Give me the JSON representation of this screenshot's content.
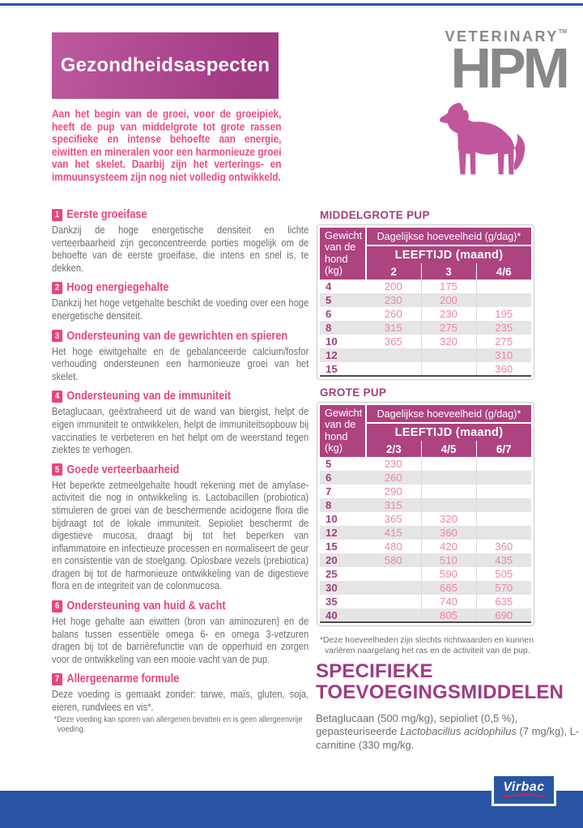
{
  "header": {
    "title": "Gezondheidsaspecten",
    "brand_top": "VETERINARY",
    "brand_tm": "TM",
    "brand_main": "HPM",
    "intro": "Aan het begin van de groei, voor de groeipiek, heeft de pup van middelgrote tot grote rassen specifieke en intense behoefte aan energie, eiwitten en mineralen voor een harmonieuze groei van het skelet. Daarbij zijn het verterings- en immuunsysteem zijn nog niet volledig ontwikkeld."
  },
  "sections": [
    {
      "num": "1",
      "title": "Eerste groeifase",
      "body": "Dankzij de hoge energetische densiteit en lichte verteerbaarheid zijn geconcentreerde porties mogelijk om de behoefte van de eerste groeifase, die intens en snel is, te dekken."
    },
    {
      "num": "2",
      "title": "Hoog energiegehalte",
      "body": "Dankzij het hoge vetgehalte beschikt de voeding over een hoge energetische densiteit."
    },
    {
      "num": "3",
      "title": "Ondersteuning van de gewrichten en spieren",
      "body": "Het hoge eiwitgehalte en de gebalanceerde calcium/fosfor verhouding ondersteunen een harmonieuze groei van het skelet."
    },
    {
      "num": "4",
      "title": "Ondersteuning van de immuniteit",
      "body": "Betaglucaan, geëxtraheerd uit de wand van biergist, helpt de eigen immuniteit te ontwikkelen, helpt de immuniteitsopbouw bij vaccinaties te verbeteren en het helpt om de weerstand tegen ziektes te verhogen."
    },
    {
      "num": "5",
      "title": "Goede verteerbaarheid",
      "body": "Het beperkte zetmeelgehalte houdt rekening met de amylase-activiteit die nog in ontwikkeling is. Lactobacillen (probiotica) stimuleren de groei van de beschermende acidogene flora die bijdraagt tot de lokale immuniteit. Sepioliet beschermt de digestieve mucosa, draagt bij tot het beperken van inflammatoire en infectieuze processen en normaliseert de geur en consistentie van de stoelgang. Oplosbare vezels (prebiotica) dragen bij tot de harmonieuze ontwikkeling van de digestieve flora en de integriteit van de colonmucosa."
    },
    {
      "num": "6",
      "title": "Ondersteuning van huid & vacht",
      "body": "Het hoge gehalte aan eiwitten (bron van aminozuren) en de balans tussen essentiële omega 6- en omega 3-vetzuren dragen bij tot de barrièrefunctie van de opperhuid en zorgen voor de ontwikkeling van een mooie vacht van de pup."
    },
    {
      "num": "7",
      "title": "Allergeenarme formule",
      "body": "Deze voeding is gemaakt zonder: tarwe, maïs, gluten, soja, eieren, rundvlees en vis*.",
      "footnote": "*Deze voeding kan sporen van allergenen bevatten en is geen allergeenvrije voeding."
    }
  ],
  "tables": [
    {
      "title": "MIDDELGROTE PUP",
      "weight_header": "Gewicht van de hond (kg)",
      "amount_header": "Dagelijkse hoeveelheid (g/dag)*",
      "age_header": "LEEFTIJD (maand)",
      "age_cols": [
        "2",
        "3",
        "4/6"
      ],
      "rows": [
        {
          "w": "4",
          "v": [
            "200",
            "175",
            ""
          ]
        },
        {
          "w": "5",
          "v": [
            "230",
            "200",
            ""
          ]
        },
        {
          "w": "6",
          "v": [
            "260",
            "230",
            "195"
          ]
        },
        {
          "w": "8",
          "v": [
            "315",
            "275",
            "235"
          ]
        },
        {
          "w": "10",
          "v": [
            "365",
            "320",
            "275"
          ]
        },
        {
          "w": "12",
          "v": [
            "",
            "",
            "310"
          ]
        },
        {
          "w": "15",
          "v": [
            "",
            "",
            "360"
          ]
        }
      ]
    },
    {
      "title": "GROTE PUP",
      "weight_header": "Gewicht van de hond (kg)",
      "amount_header": "Dagelijkse hoeveelheid (g/dag)*",
      "age_header": "LEEFTIJD (maand)",
      "age_cols": [
        "2/3",
        "4/5",
        "6/7"
      ],
      "rows": [
        {
          "w": "5",
          "v": [
            "230",
            "",
            ""
          ]
        },
        {
          "w": "6",
          "v": [
            "260",
            "",
            ""
          ]
        },
        {
          "w": "7",
          "v": [
            "290",
            "",
            ""
          ]
        },
        {
          "w": "8",
          "v": [
            "315",
            "",
            ""
          ]
        },
        {
          "w": "10",
          "v": [
            "365",
            "320",
            ""
          ]
        },
        {
          "w": "12",
          "v": [
            "415",
            "360",
            ""
          ]
        },
        {
          "w": "15",
          "v": [
            "480",
            "420",
            "360"
          ]
        },
        {
          "w": "20",
          "v": [
            "580",
            "510",
            "435"
          ]
        },
        {
          "w": "25",
          "v": [
            "",
            "590",
            "505"
          ]
        },
        {
          "w": "30",
          "v": [
            "",
            "665",
            "570"
          ]
        },
        {
          "w": "35",
          "v": [
            "",
            "740",
            "635"
          ]
        },
        {
          "w": "40",
          "v": [
            "",
            "805",
            "690"
          ]
        }
      ]
    }
  ],
  "tables_footnote": "*Deze hoeveelheden zijn slechts richtwaarden en kunnen variëren naargelang het ras en de activiteit van de pup.",
  "additives": {
    "title": "SPECIFIEKE TOEVOEGINGSMIDDELEN",
    "body_pre": "Betaglucaan (500 mg/kg), sepioliet (0,5 %), gepasteuriseerde ",
    "body_italic": "Lactobacillus acidophilus",
    "body_post": " (7 mg/kg), L-carnitine (330 mg/kg."
  },
  "footer": {
    "logo_text": "Virbac"
  },
  "colors": {
    "blue": "#2a55a4",
    "magenta": "#ad4380",
    "dark-magenta": "#a2407c",
    "pink": "#e8457f",
    "intro-pink": "#ee4b80",
    "value-pink": "#ef86ab",
    "gray-text": "#6d6e71",
    "logo-gray": "#87888a",
    "dog-pink": "#c2569d",
    "virbac-red": "#d8252a"
  }
}
